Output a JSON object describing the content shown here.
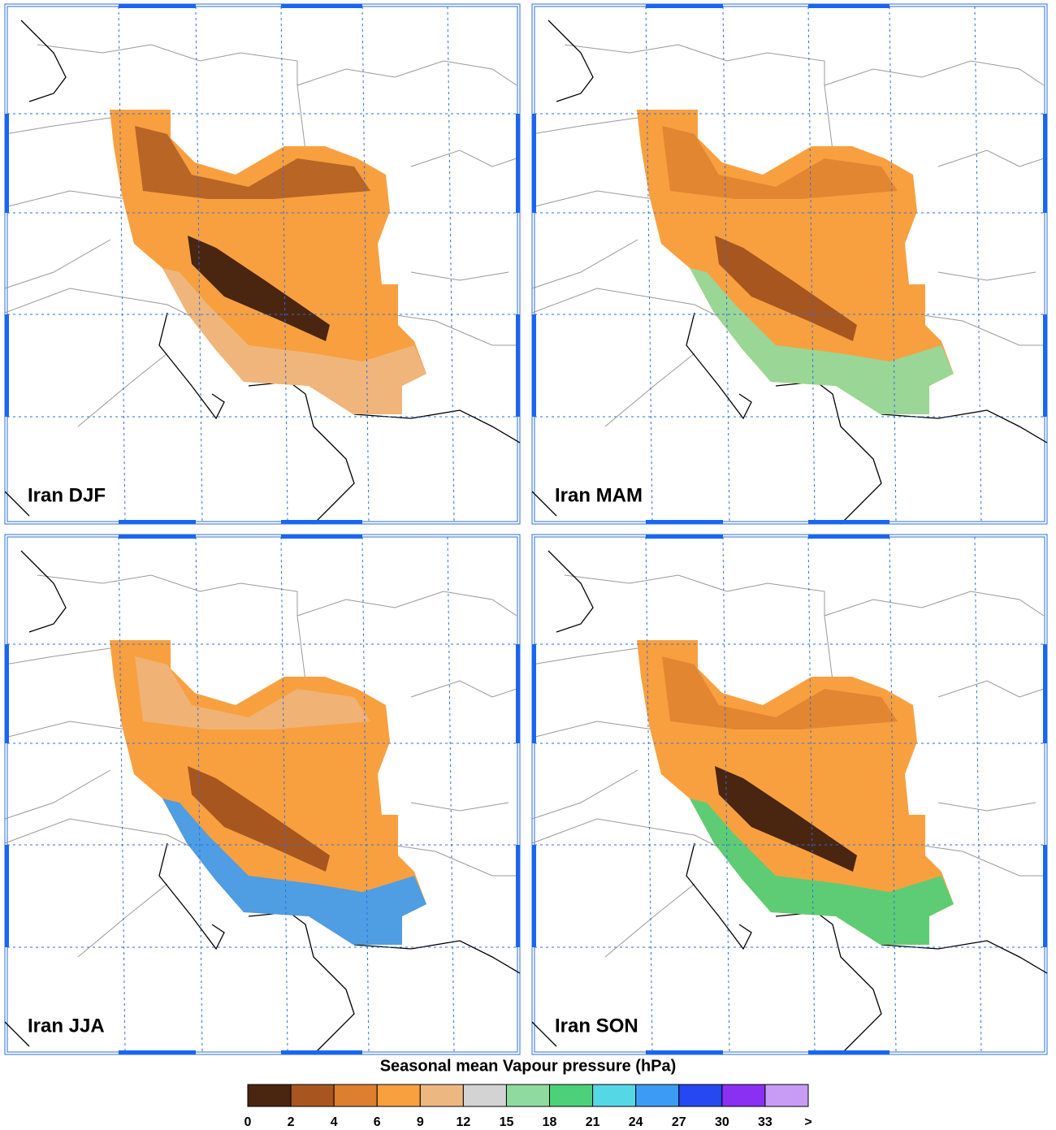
{
  "panels": [
    {
      "label": "Iran DJF"
    },
    {
      "label": "Iran MAM"
    },
    {
      "label": "Iran JJA"
    },
    {
      "label": "Iran SON"
    }
  ],
  "colorbar": {
    "title": "Seasonal mean Vapour pressure (hPa)",
    "ticks": [
      0,
      2,
      4,
      6,
      9,
      12,
      15,
      18,
      21,
      24,
      27,
      30,
      33
    ],
    "overflow_label": ">",
    "colors": [
      "#4a2510",
      "#a8561f",
      "#dd7f2e",
      "#f8a040",
      "#edb782",
      "#d3d3d3",
      "#8fdb9f",
      "#4dd07a",
      "#55d8e6",
      "#3c9cf5",
      "#2648f2",
      "#8a30f2",
      "#c89cf5"
    ]
  }
}
